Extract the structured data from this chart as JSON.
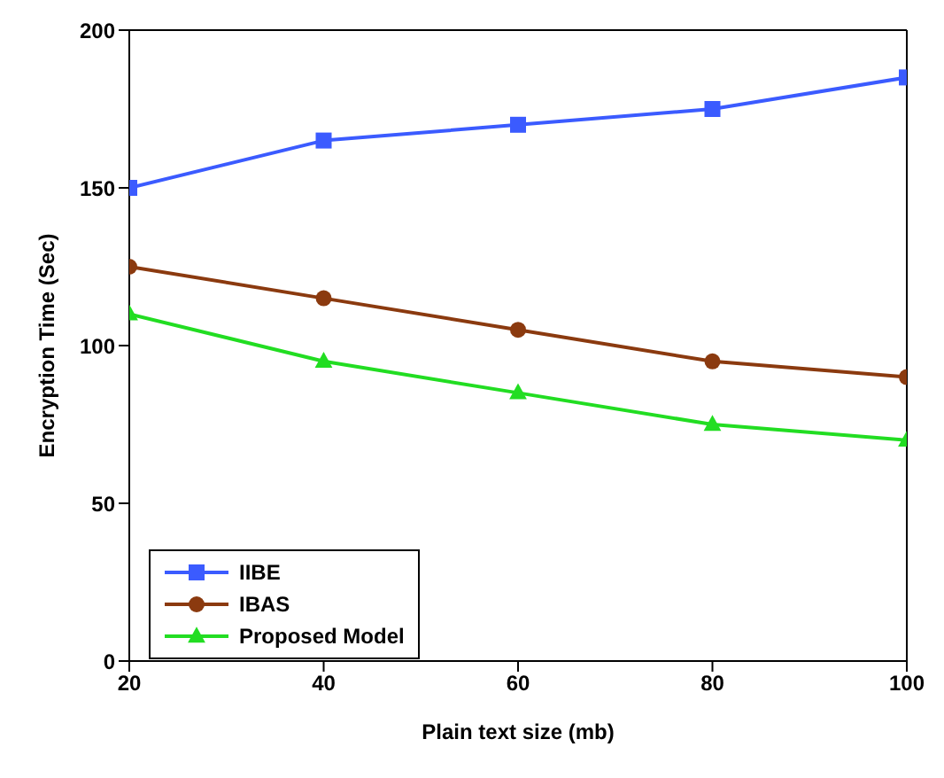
{
  "chart_data": {
    "type": "line",
    "xlabel": "Plain text size (mb)",
    "ylabel": "Encryption Time (Sec)",
    "x": [
      20,
      40,
      60,
      80,
      100
    ],
    "series": [
      {
        "name": "IIBE",
        "color": "#3b5bff",
        "values": [
          150,
          165,
          170,
          175,
          185
        ],
        "marker": "square"
      },
      {
        "name": "IBAS",
        "color": "#8b3a0f",
        "values": [
          125,
          115,
          105,
          95,
          90
        ],
        "marker": "circle"
      },
      {
        "name": "Proposed Model",
        "color": "#22dd22",
        "values": [
          110,
          95,
          85,
          75,
          70
        ],
        "marker": "triangle"
      }
    ],
    "xlim": [
      20,
      100
    ],
    "xticks": [
      20,
      40,
      60,
      80,
      100
    ],
    "ylim": [
      0,
      200
    ],
    "yticks": [
      0,
      50,
      100,
      150,
      200
    ],
    "grid": false,
    "legend": "bottom left"
  }
}
